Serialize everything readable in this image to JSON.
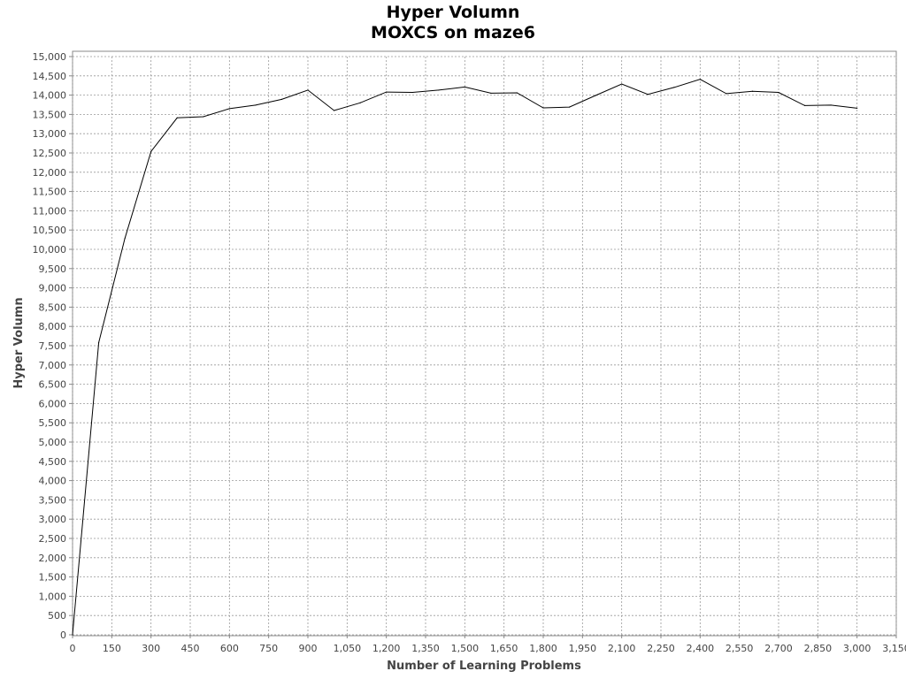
{
  "chart_data": {
    "type": "line",
    "title": "Hyper Volumn",
    "subtitle": "MOXCS on maze6",
    "xlabel": "Number of Learning Problems",
    "ylabel": "Hyper Volumn",
    "xlim": [
      0,
      3150
    ],
    "ylim": [
      0,
      15000
    ],
    "grid": true,
    "x_ticks": [
      "0",
      "150",
      "300",
      "450",
      "600",
      "750",
      "900",
      "1,050",
      "1,200",
      "1,350",
      "1,500",
      "1,650",
      "1,800",
      "1,950",
      "2,100",
      "2,250",
      "2,400",
      "2,550",
      "2,700",
      "2,850",
      "3,000",
      "3,150"
    ],
    "y_ticks": [
      "0",
      "500",
      "1,000",
      "1,500",
      "2,000",
      "2,500",
      "3,000",
      "3,500",
      "4,000",
      "4,500",
      "5,000",
      "5,500",
      "6,000",
      "6,500",
      "7,000",
      "7,500",
      "8,000",
      "8,500",
      "9,000",
      "9,500",
      "10,000",
      "10,500",
      "11,000",
      "11,500",
      "12,000",
      "12,500",
      "13,000",
      "13,500",
      "14,000",
      "14,500",
      "15,000"
    ],
    "x_tick_values": [
      0,
      150,
      300,
      450,
      600,
      750,
      900,
      1050,
      1200,
      1350,
      1500,
      1650,
      1800,
      1950,
      2100,
      2250,
      2400,
      2550,
      2700,
      2850,
      3000,
      3150
    ],
    "y_tick_values": [
      0,
      500,
      1000,
      1500,
      2000,
      2500,
      3000,
      3500,
      4000,
      4500,
      5000,
      5500,
      6000,
      6500,
      7000,
      7500,
      8000,
      8500,
      9000,
      9500,
      10000,
      10500,
      11000,
      11500,
      12000,
      12500,
      13000,
      13500,
      14000,
      14500,
      15000
    ],
    "series": [
      {
        "color": "#000000",
        "x": [
          0,
          100,
          200,
          300,
          400,
          500,
          600,
          700,
          800,
          900,
          1000,
          1100,
          1200,
          1300,
          1400,
          1500,
          1600,
          1700,
          1800,
          1900,
          2000,
          2100,
          2200,
          2300,
          2400,
          2500,
          2600,
          2700,
          2800,
          2900,
          3000
        ],
        "y": [
          0,
          7580,
          10280,
          12540,
          13410,
          13440,
          13650,
          13740,
          13890,
          14130,
          13600,
          13800,
          14080,
          14070,
          14130,
          14210,
          14050,
          14060,
          13670,
          13690,
          13990,
          14290,
          14020,
          14200,
          14410,
          14040,
          14100,
          14070,
          13730,
          13740,
          13660
        ]
      }
    ]
  }
}
